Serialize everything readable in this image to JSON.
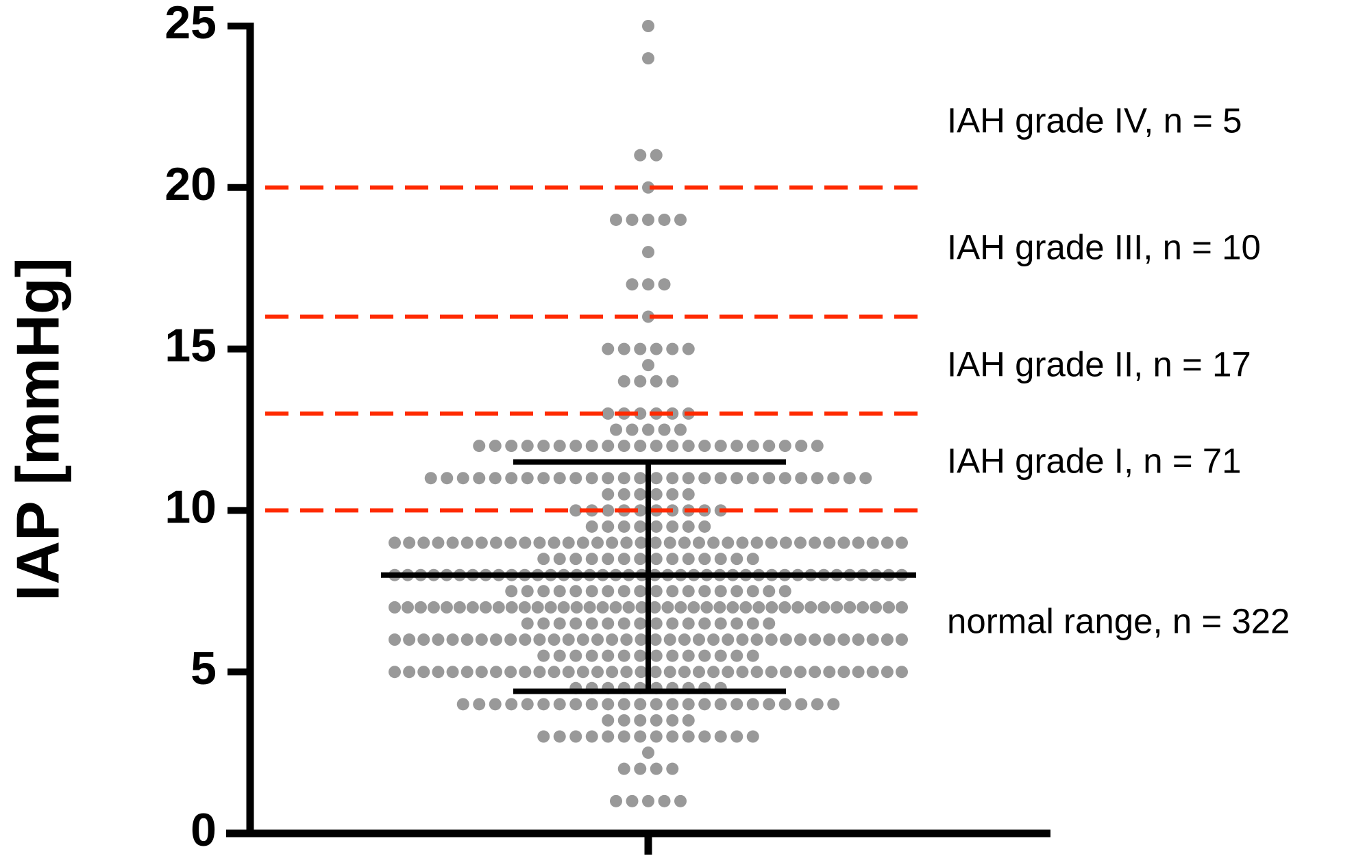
{
  "chart_data": {
    "type": "dotplot",
    "ylabel": "IAP [mmHg]",
    "ylim": [
      0,
      25
    ],
    "yticks": [
      0,
      5,
      10,
      15,
      20,
      25
    ],
    "color": "#999999",
    "threshold_color": "#ff2a00",
    "thresholds": [
      10,
      13,
      16,
      20
    ],
    "annotations": [
      "IAH grade IV, n = 5",
      "IAH grade III, n = 10",
      "IAH grade II, n = 17",
      "IAH grade I, n = 71",
      "normal range, n = 322"
    ],
    "error_bar": {
      "center": 8,
      "low": 4.4,
      "high": 11.5
    },
    "values": [
      25,
      24,
      21,
      21,
      20,
      19,
      19,
      19,
      19,
      19,
      18,
      17,
      17,
      17,
      16,
      15,
      15,
      15,
      15,
      15,
      15,
      14.5,
      14,
      14,
      14,
      14,
      13,
      13,
      13,
      13,
      13,
      13,
      12.5,
      12.5,
      12.5,
      12.5,
      12.5,
      12,
      12,
      12,
      12,
      12,
      12,
      12,
      12,
      12,
      12,
      12,
      12,
      12,
      12,
      12,
      12,
      12,
      12,
      12,
      12,
      12,
      12,
      11,
      11,
      11,
      11,
      11,
      11,
      11,
      11,
      11,
      11,
      11,
      11,
      11,
      11,
      11,
      11,
      11,
      11,
      11,
      11,
      11,
      11,
      11,
      11,
      11,
      11,
      11,
      11,
      10.5,
      10.5,
      10.5,
      10.5,
      10.5,
      10.5,
      10,
      10,
      10,
      10,
      10,
      10,
      10,
      10,
      10,
      10,
      9.5,
      9.5,
      9.5,
      9.5,
      9.5,
      9.5,
      9.5,
      9.5,
      9,
      9,
      9,
      9,
      9,
      9,
      9,
      9,
      9,
      9,
      9,
      9,
      9,
      9,
      9,
      9,
      9,
      9,
      9,
      9,
      9,
      9,
      9,
      9,
      9,
      9,
      9,
      9,
      9,
      9,
      9,
      9,
      9,
      9,
      9,
      9,
      8.5,
      8.5,
      8.5,
      8.5,
      8.5,
      8.5,
      8.5,
      8.5,
      8.5,
      8.5,
      8.5,
      8.5,
      8.5,
      8.5,
      8,
      8,
      8,
      8,
      8,
      8,
      8,
      8,
      8,
      8,
      8,
      8,
      8,
      8,
      8,
      8,
      8,
      8,
      8,
      8,
      8,
      8,
      8,
      8,
      8,
      8,
      8,
      8,
      8,
      8,
      8,
      8,
      8,
      8,
      8,
      8,
      8,
      8,
      8,
      8,
      7.5,
      7.5,
      7.5,
      7.5,
      7.5,
      7.5,
      7.5,
      7.5,
      7.5,
      7.5,
      7.5,
      7.5,
      7.5,
      7.5,
      7.5,
      7.5,
      7.5,
      7.5,
      7,
      7,
      7,
      7,
      7,
      7,
      7,
      7,
      7,
      7,
      7,
      7,
      7,
      7,
      7,
      7,
      7,
      7,
      7,
      7,
      7,
      7,
      7,
      7,
      7,
      7,
      7,
      7,
      7,
      7,
      7,
      7,
      7,
      7,
      7,
      7,
      7,
      7,
      7,
      7,
      6.5,
      6.5,
      6.5,
      6.5,
      6.5,
      6.5,
      6.5,
      6.5,
      6.5,
      6.5,
      6.5,
      6.5,
      6.5,
      6.5,
      6.5,
      6.5,
      6,
      6,
      6,
      6,
      6,
      6,
      6,
      6,
      6,
      6,
      6,
      6,
      6,
      6,
      6,
      6,
      6,
      6,
      6,
      6,
      6,
      6,
      6,
      6,
      6,
      6,
      6,
      6,
      6,
      6,
      6,
      6,
      6,
      6,
      6,
      6,
      5.5,
      5.5,
      5.5,
      5.5,
      5.5,
      5.5,
      5.5,
      5.5,
      5.5,
      5.5,
      5.5,
      5.5,
      5.5,
      5.5,
      5,
      5,
      5,
      5,
      5,
      5,
      5,
      5,
      5,
      5,
      5,
      5,
      5,
      5,
      5,
      5,
      5,
      5,
      5,
      5,
      5,
      5,
      5,
      5,
      5,
      5,
      5,
      5,
      5,
      5,
      5,
      5,
      5,
      5,
      5,
      5,
      4.5,
      4.5,
      4.5,
      4.5,
      4.5,
      4.5,
      4.5,
      4.5,
      4.5,
      4.5,
      4,
      4,
      4,
      4,
      4,
      4,
      4,
      4,
      4,
      4,
      4,
      4,
      4,
      4,
      4,
      4,
      4,
      4,
      4,
      4,
      4,
      4,
      4,
      4,
      3.5,
      3.5,
      3.5,
      3.5,
      3.5,
      3.5,
      3,
      3,
      3,
      3,
      3,
      3,
      3,
      3,
      3,
      3,
      3,
      3,
      3,
      3,
      2.5,
      2,
      2,
      2,
      2,
      1,
      1,
      1,
      1,
      1
    ]
  }
}
